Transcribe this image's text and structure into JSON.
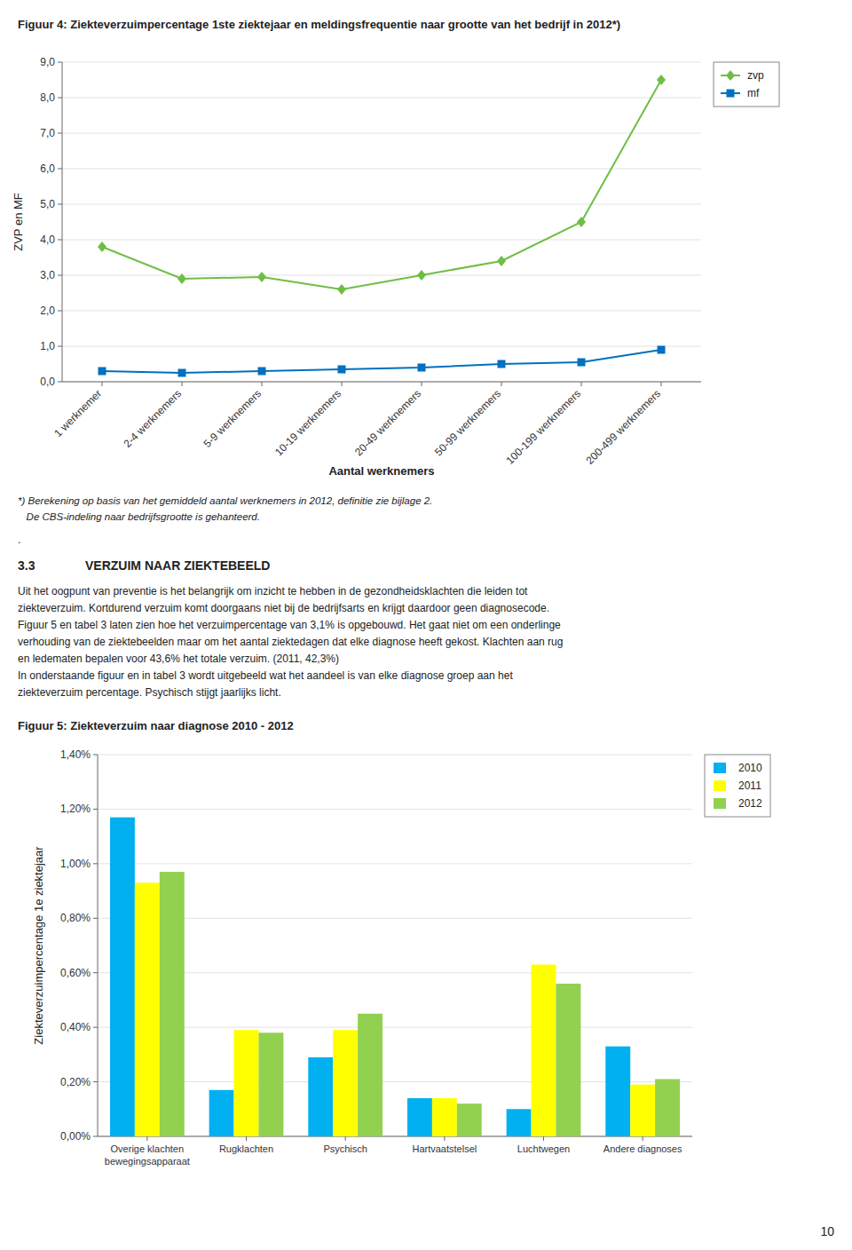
{
  "chart_data": [
    {
      "type": "line",
      "title": "Figuur 4: Ziekteverzuimpercentage 1ste ziektejaar en meldingsfrequentie naar grootte van het bedrijf in 2012*)",
      "x_label": "Aantal werknemers",
      "y_label": "ZVP en MF",
      "categories": [
        "1 werknemer",
        "2-4 werknemers",
        "5-9 werknemers",
        "10-19 werknemers",
        "20-49 werknemers",
        "50-99 werknemers",
        "100-199 werknemers",
        "200-499 werknemers"
      ],
      "series": [
        {
          "name": "zvp",
          "color": "#6fbe44",
          "marker": "diamond",
          "values": [
            3.8,
            2.9,
            2.95,
            2.6,
            3.0,
            3.4,
            4.5,
            8.5
          ]
        },
        {
          "name": "mf",
          "color": "#0070c0",
          "marker": "square",
          "values": [
            0.3,
            0.25,
            0.3,
            0.35,
            0.4,
            0.5,
            0.55,
            0.9
          ]
        }
      ],
      "ylim": [
        0,
        9.0
      ],
      "yticks": [
        {
          "value": 0.0,
          "label": "0,0"
        },
        {
          "value": 1.0,
          "label": "1,0"
        },
        {
          "value": 2.0,
          "label": "2,0"
        },
        {
          "value": 3.0,
          "label": "3,0"
        },
        {
          "value": 4.0,
          "label": "4,0"
        },
        {
          "value": 5.0,
          "label": "5,0"
        },
        {
          "value": 6.0,
          "label": "6,0"
        },
        {
          "value": 7.0,
          "label": "7,0"
        },
        {
          "value": 8.0,
          "label": "8,0"
        },
        {
          "value": 9.0,
          "label": "9,0"
        }
      ],
      "grid": true,
      "legend": "upper right",
      "annotations": [
        "*) Berekening op basis van het gemiddeld aantal werknemers in 2012, definitie zie bijlage 2.",
        "   De CBS-indeling naar bedrijfsgrootte is gehanteerd."
      ]
    },
    {
      "type": "bar",
      "title": "Figuur 5: Ziekteverzuim naar diagnose 2010 - 2012",
      "y_label": "Ziekteverzuimpercentage 1e ziektejaar",
      "categories": [
        "Overige klachten\nbewegingsapparaat",
        "Rugklachten",
        "Psychisch",
        "Hartvaatstelsel",
        "Luchtwegen",
        "Andere diagnoses"
      ],
      "series": [
        {
          "name": "2010",
          "color": "#00b0f0",
          "values": [
            0.0117,
            0.0017,
            0.0029,
            0.0014,
            0.001,
            0.0033
          ]
        },
        {
          "name": "2011",
          "color": "#ffff00",
          "values": [
            0.0093,
            0.0039,
            0.0039,
            0.0014,
            0.0063,
            0.0019
          ]
        },
        {
          "name": "2012",
          "color": "#92d050",
          "values": [
            0.0097,
            0.0038,
            0.0045,
            0.0012,
            0.0056,
            0.0021
          ]
        }
      ],
      "ylim": [
        0,
        0.014
      ],
      "yticks": [
        {
          "value": 0.0,
          "label": "0,00%"
        },
        {
          "value": 0.002,
          "label": "0,20%"
        },
        {
          "value": 0.004,
          "label": "0,40%"
        },
        {
          "value": 0.006,
          "label": "0,60%"
        },
        {
          "value": 0.008,
          "label": "0,80%"
        },
        {
          "value": 0.01,
          "label": "1,00%"
        },
        {
          "value": 0.012,
          "label": "1,20%"
        },
        {
          "value": 0.014,
          "label": "1,40%"
        }
      ],
      "grid": true,
      "legend": "upper right",
      "annotations": [
        ".",
        "3.3",
        "VERZUIM NAAR ZIEKTEBEELD",
        "Uit het oogpunt van preventie is het belangrijk om inzicht te hebben in de gezondheidsklachten die leiden tot\nziekteverzuim. Kortdurend verzuim komt doorgaans niet bij de bedrijfsarts en krijgt daardoor geen diagnosecode.\nFiguur 5 en tabel 3 laten zien hoe het verzuimpercentage van 3,1% is opgebouwd. Het gaat niet om een onderlinge\nverhouding van de ziektebeelden maar om het aantal ziektedagen dat elke diagnose heeft gekost. Klachten aan rug\nen ledematen bepalen voor 43,6% het totale verzuim. (2011, 42,3%)\nIn onderstaande figuur en in tabel 3 wordt uitgebeeld wat het aandeel is van elke diagnose groep aan het\nziekteverzuim percentage. Psychisch stijgt jaarlijks licht.",
        "10"
      ]
    }
  ]
}
